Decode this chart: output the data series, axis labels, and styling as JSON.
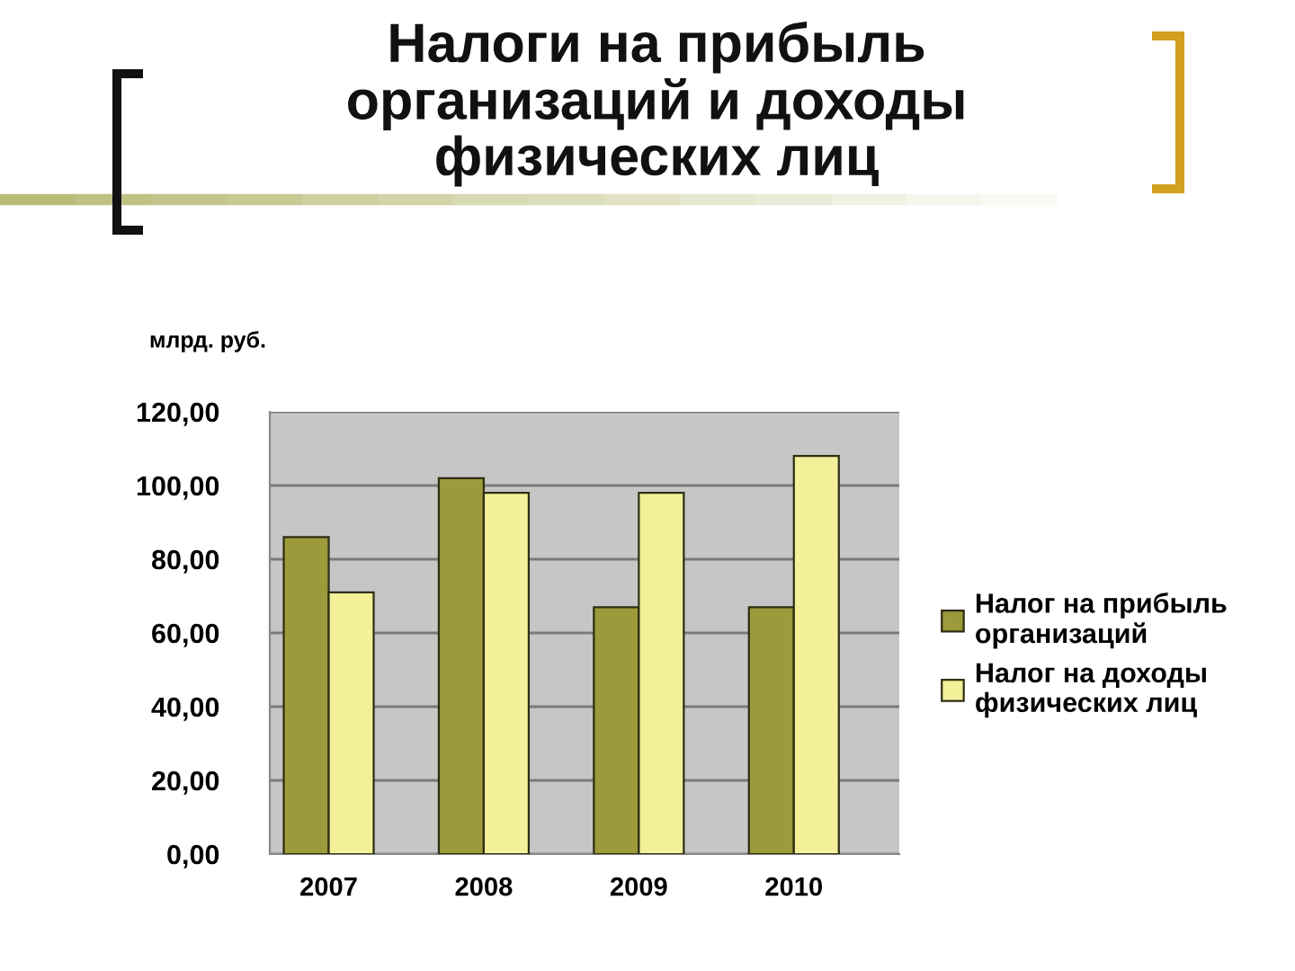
{
  "chart_data": {
    "type": "bar",
    "title": "Налоги на прибыль\nорганизаций и доходы\nфизических лиц",
    "ylabel": "млрд. руб.",
    "categories": [
      "2007",
      "2008",
      "2009",
      "2010"
    ],
    "series": [
      {
        "name": "Налог на прибыль\nорганизаций",
        "color": "#9c9a3a",
        "values": [
          86,
          102,
          67,
          67
        ]
      },
      {
        "name": "Налог на доходы\nфизических лиц",
        "color": "#f4f09a",
        "values": [
          71,
          98,
          98,
          108
        ]
      }
    ],
    "ylim": [
      0,
      120
    ],
    "yticks": [
      {
        "value": 0,
        "label": "0,00"
      },
      {
        "value": 20,
        "label": "20,00"
      },
      {
        "value": 40,
        "label": "40,00"
      },
      {
        "value": 60,
        "label": "60,00"
      },
      {
        "value": 80,
        "label": "80,00"
      },
      {
        "value": 100,
        "label": "100,00"
      },
      {
        "value": 120,
        "label": "120,00"
      }
    ],
    "grid": "y",
    "legend": "right"
  }
}
